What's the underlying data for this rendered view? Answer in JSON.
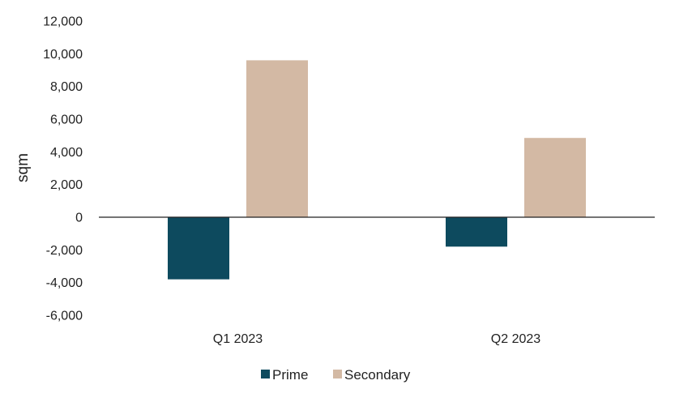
{
  "chart_data": {
    "type": "bar",
    "title": "",
    "xlabel": "",
    "ylabel": "sqm",
    "categories": [
      "Q1 2023",
      "Q2 2023"
    ],
    "series": [
      {
        "name": "Prime",
        "values": [
          -3800,
          -1800
        ],
        "color": "#0d4a5e"
      },
      {
        "name": "Secondary",
        "values": [
          9600,
          4850
        ],
        "color": "#d3b9a4"
      }
    ],
    "ylim": [
      -6000,
      12000
    ],
    "yticks": [
      12000,
      10000,
      8000,
      6000,
      4000,
      2000,
      0,
      -2000,
      -4000,
      -6000
    ],
    "ytick_labels": [
      "12,000",
      "10,000",
      "8,000",
      "6,000",
      "4,000",
      "2,000",
      "0",
      "-2,000",
      "-4,000",
      "-6,000"
    ],
    "grid": false,
    "legend": "bottom"
  }
}
